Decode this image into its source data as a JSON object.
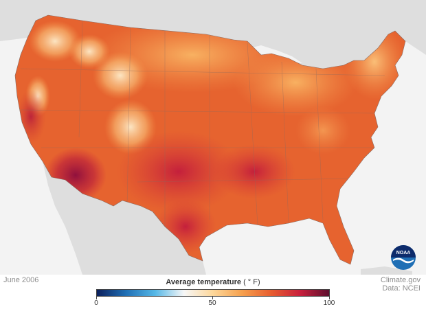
{
  "map": {
    "date": "June 2006",
    "legend": {
      "title": "Average temperature",
      "unit": "( ° F)",
      "ticks": [
        "0",
        "50",
        "100"
      ],
      "min": 0,
      "max": 100,
      "gradient": [
        "#0b1f5c",
        "#1f6fb5",
        "#55b7e6",
        "#f7f7f7",
        "#fdd79a",
        "#f6a04d",
        "#e75d2f",
        "#c81f3c",
        "#5c0f2e"
      ]
    },
    "credits": {
      "site": "Climate.gov",
      "data": "Data: NCEI"
    },
    "logo_text": "NOAA",
    "colors": {
      "land_base": "#e6632f",
      "hot": "#a01040",
      "warm": "#f6a04d",
      "cool": "#fde3b0",
      "foreign_land": "#dedede",
      "background": "#f3f3f3"
    }
  }
}
